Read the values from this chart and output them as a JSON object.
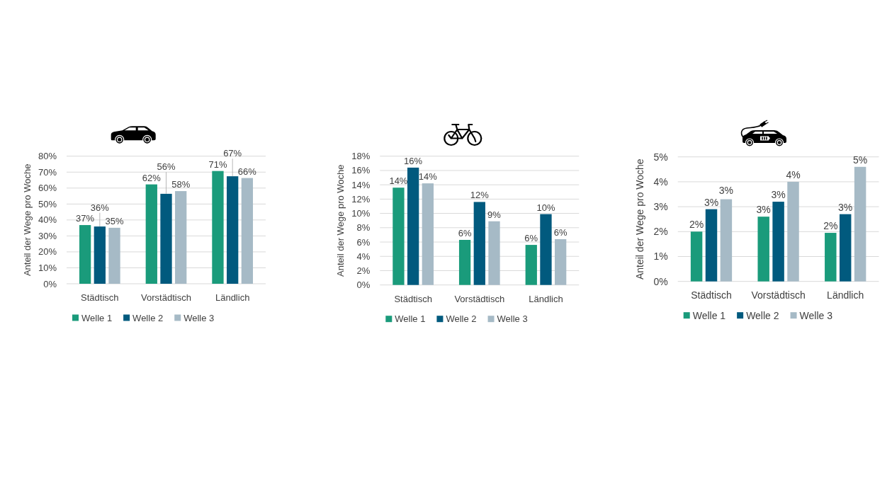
{
  "chart_data": [
    {
      "type": "bar",
      "ylabel": "Anteil der Wege pro Woche",
      "categories": [
        "Städtisch",
        "Vorstädtisch",
        "Ländlich"
      ],
      "series": [
        {
          "name": "Welle 1",
          "color": "#1a9b7b",
          "values": [
            36.8,
            62.3,
            70.7
          ],
          "value_labels": [
            "37%",
            "62%",
            "71%"
          ]
        },
        {
          "name": "Welle 2",
          "color": "#015a7e",
          "values": [
            35.9,
            56.4,
            67.4
          ],
          "value_labels": [
            "36%",
            "56%",
            "67%"
          ]
        },
        {
          "name": "Welle 3",
          "color": "#a6bac6",
          "values": [
            35.1,
            58.1,
            66.3
          ],
          "value_labels": [
            "35%",
            "58%",
            "66%"
          ]
        }
      ],
      "ylim": [
        0,
        80
      ],
      "yticks": [
        {
          "value": 0,
          "label": "0%"
        },
        {
          "value": 10,
          "label": "10%"
        },
        {
          "value": 20,
          "label": "20%"
        },
        {
          "value": 30,
          "label": "30%"
        },
        {
          "value": 40,
          "label": "40%"
        },
        {
          "value": 50,
          "label": "50%"
        },
        {
          "value": 60,
          "label": "60%"
        },
        {
          "value": 70,
          "label": "70%"
        },
        {
          "value": 80,
          "label": "80%"
        }
      ],
      "grid": "y",
      "legend": "bottom"
    },
    {
      "type": "bar",
      "ylabel": "Anteil der Wege pro Woche",
      "categories": [
        "Städtisch",
        "Vorstädtisch",
        "Ländlich"
      ],
      "series": [
        {
          "name": "Welle 1",
          "color": "#1a9b7b",
          "values": [
            13.6,
            6.3,
            5.6
          ],
          "value_labels": [
            "14%",
            "6%",
            "6%"
          ]
        },
        {
          "name": "Welle 2",
          "color": "#015a7e",
          "values": [
            16.4,
            11.6,
            9.9
          ],
          "value_labels": [
            "16%",
            "12%",
            "10%"
          ]
        },
        {
          "name": "Welle 3",
          "color": "#a6bac6",
          "values": [
            14.2,
            8.9,
            6.4
          ],
          "value_labels": [
            "14%",
            "9%",
            "6%"
          ]
        }
      ],
      "ylim": [
        0,
        18
      ],
      "yticks": [
        {
          "value": 0,
          "label": "0%"
        },
        {
          "value": 2,
          "label": "2%"
        },
        {
          "value": 4,
          "label": "4%"
        },
        {
          "value": 6,
          "label": "6%"
        },
        {
          "value": 8,
          "label": "8%"
        },
        {
          "value": 10,
          "label": "10%"
        },
        {
          "value": 12,
          "label": "12%"
        },
        {
          "value": 14,
          "label": "14%"
        },
        {
          "value": 16,
          "label": "16%"
        },
        {
          "value": 18,
          "label": "18%"
        }
      ],
      "grid": "y",
      "legend": "bottom"
    },
    {
      "type": "bar",
      "ylabel": "Anteil der Wege pro Woche",
      "categories": [
        "Städtisch",
        "Vorstädtisch",
        "Ländlich"
      ],
      "series": [
        {
          "name": "Welle 1",
          "color": "#1a9b7b",
          "values": [
            2.0,
            2.6,
            1.95
          ],
          "value_labels": [
            "2%",
            "3%",
            "2%"
          ]
        },
        {
          "name": "Welle 2",
          "color": "#015a7e",
          "values": [
            2.9,
            3.2,
            2.7
          ],
          "value_labels": [
            "3%",
            "3%",
            "3%"
          ]
        },
        {
          "name": "Welle 3",
          "color": "#a6bac6",
          "values": [
            3.3,
            4.0,
            4.6
          ],
          "value_labels": [
            "3%",
            "4%",
            "5%"
          ]
        }
      ],
      "ylim": [
        0,
        5
      ],
      "yticks": [
        {
          "value": 0,
          "label": "0%"
        },
        {
          "value": 1,
          "label": "1%"
        },
        {
          "value": 2,
          "label": "2%"
        },
        {
          "value": 3,
          "label": "3%"
        },
        {
          "value": 4,
          "label": "4%"
        },
        {
          "value": 5,
          "label": "5%"
        }
      ],
      "grid": "y",
      "legend": "bottom"
    }
  ]
}
